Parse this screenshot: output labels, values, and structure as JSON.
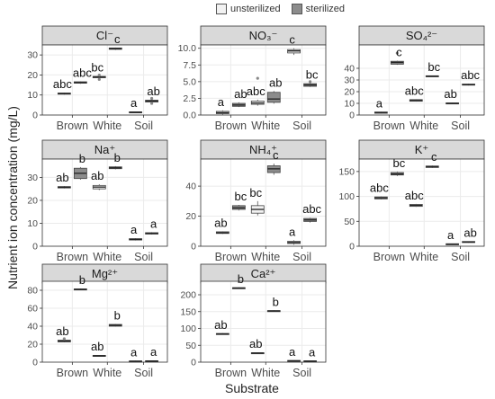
{
  "legend": {
    "entries": [
      {
        "label": "unsterilized",
        "color": "#f2f2f2"
      },
      {
        "label": "sterilized",
        "color": "#8c8c8c"
      }
    ]
  },
  "ylabel": "Nutrient ion concentration (mg/L)",
  "xlabel": "Substrate",
  "chart_data": {
    "type": "box",
    "categories": [
      "Brown",
      "White",
      "Soil"
    ],
    "groups": [
      "unsterilized",
      "sterilized"
    ],
    "panels": [
      {
        "title": "Cl⁻",
        "ylim": [
          0,
          35
        ],
        "yticks": [
          0,
          10,
          20,
          30
        ],
        "boxes": {
          "Brown": [
            {
              "q1": 10.4,
              "med": 10.7,
              "q3": 11.0,
              "lo": 10.2,
              "hi": 11.2,
              "label": "abc"
            },
            {
              "q1": 15.9,
              "med": 16.2,
              "q3": 16.6,
              "lo": 15.6,
              "hi": 16.8,
              "label": "abc"
            }
          ],
          "White": [
            {
              "q1": 18.6,
              "med": 19.0,
              "q3": 19.3,
              "lo": 18.4,
              "hi": 19.5,
              "label": "bc",
              "outliers": [
                17.8,
                19.9
              ]
            },
            {
              "q1": 32.8,
              "med": 33.1,
              "q3": 33.5,
              "lo": 32.5,
              "hi": 33.7,
              "label": "c"
            }
          ],
          "Soil": [
            {
              "q1": 1.2,
              "med": 1.4,
              "q3": 1.6,
              "lo": 1.1,
              "hi": 1.7,
              "label": "a"
            },
            {
              "q1": 6.5,
              "med": 7.0,
              "q3": 7.4,
              "lo": 6.2,
              "hi": 7.6,
              "label": "ab",
              "outliers": [
                8.3,
                5.8
              ]
            }
          ]
        }
      },
      {
        "title": "NO₃⁻",
        "ylim": [
          0,
          10.5
        ],
        "yticks": [
          0.0,
          2.5,
          5.0,
          7.5,
          10.0
        ],
        "boxes": {
          "Brown": [
            {
              "q1": 0.2,
              "med": 0.35,
              "q3": 0.55,
              "lo": 0.05,
              "hi": 0.7,
              "label": "a"
            },
            {
              "q1": 1.3,
              "med": 1.5,
              "q3": 1.75,
              "lo": 1.2,
              "hi": 1.9,
              "label": "ab"
            }
          ],
          "White": [
            {
              "q1": 1.6,
              "med": 1.8,
              "q3": 2.1,
              "lo": 1.4,
              "hi": 2.3,
              "label": "abc",
              "outliers": [
                5.5
              ]
            },
            {
              "q1": 1.9,
              "med": 2.4,
              "q3": 3.4,
              "lo": 1.7,
              "hi": 3.6,
              "label": "ab"
            }
          ],
          "Soil": [
            {
              "q1": 9.3,
              "med": 9.6,
              "q3": 9.8,
              "lo": 9.0,
              "hi": 10.0,
              "label": "c"
            },
            {
              "q1": 4.3,
              "med": 4.5,
              "q3": 4.7,
              "lo": 4.2,
              "hi": 4.8,
              "label": "bc",
              "outliers": [
                5.0
              ]
            }
          ]
        }
      },
      {
        "title": "SO₄²⁻",
        "ylim": [
          0,
          60
        ],
        "yticks": [
          0,
          10,
          20,
          30,
          40
        ],
        "boxes": {
          "Brown": [
            {
              "q1": 1.5,
              "med": 2.0,
              "q3": 2.6,
              "lo": 1.2,
              "hi": 2.8,
              "label": "a"
            },
            {
              "q1": 43.5,
              "med": 45.0,
              "q3": 46.0,
              "lo": 43.0,
              "hi": 46.5,
              "label": "c",
              "outliers": [
                53.0
              ]
            }
          ],
          "White": [
            {
              "q1": 11.8,
              "med": 12.5,
              "q3": 13.2,
              "lo": 11.5,
              "hi": 13.5,
              "label": "abc"
            },
            {
              "q1": 33.0,
              "med": 33.3,
              "q3": 33.6,
              "lo": 32.8,
              "hi": 33.8,
              "label": "bc"
            }
          ],
          "Soil": [
            {
              "q1": 9.5,
              "med": 10.0,
              "q3": 10.4,
              "lo": 9.3,
              "hi": 10.6,
              "label": "ab"
            },
            {
              "q1": 25.6,
              "med": 26.0,
              "q3": 26.5,
              "lo": 25.3,
              "hi": 26.8,
              "label": "abc"
            }
          ]
        }
      },
      {
        "title": "Na⁺",
        "ylim": [
          0,
          38
        ],
        "yticks": [
          0,
          10,
          20,
          30
        ],
        "boxes": {
          "Brown": [
            {
              "q1": 25.4,
              "med": 25.7,
              "q3": 26.0,
              "lo": 25.2,
              "hi": 26.2,
              "label": "ab"
            },
            {
              "q1": 29.5,
              "med": 31.8,
              "q3": 34.0,
              "lo": 29.0,
              "hi": 34.5,
              "label": "b"
            }
          ],
          "White": [
            {
              "q1": 25.0,
              "med": 25.8,
              "q3": 26.5,
              "lo": 24.5,
              "hi": 27.0,
              "label": "ab"
            },
            {
              "q1": 33.8,
              "med": 34.2,
              "q3": 34.6,
              "lo": 33.5,
              "hi": 34.9,
              "label": "b"
            }
          ],
          "Soil": [
            {
              "q1": 2.7,
              "med": 3.0,
              "q3": 3.3,
              "lo": 2.5,
              "hi": 3.5,
              "label": "a"
            },
            {
              "q1": 5.3,
              "med": 5.6,
              "q3": 5.9,
              "lo": 5.1,
              "hi": 6.1,
              "label": "a"
            }
          ]
        }
      },
      {
        "title": "NH₄⁺",
        "ylim": [
          0,
          58
        ],
        "yticks": [
          0,
          20,
          40
        ],
        "boxes": {
          "Brown": [
            {
              "q1": 8.5,
              "med": 9.0,
              "q3": 9.6,
              "lo": 8.2,
              "hi": 9.9,
              "label": "ab"
            },
            {
              "q1": 24.5,
              "med": 25.5,
              "q3": 27.0,
              "lo": 23.8,
              "hi": 27.5,
              "label": "bc"
            }
          ],
          "White": [
            {
              "q1": 22.0,
              "med": 24.5,
              "q3": 27.0,
              "lo": 20.5,
              "hi": 30.0,
              "label": "bc"
            },
            {
              "q1": 49.0,
              "med": 51.5,
              "q3": 53.5,
              "lo": 47.5,
              "hi": 55.0,
              "label": "c"
            }
          ],
          "Soil": [
            {
              "q1": 1.8,
              "med": 2.5,
              "q3": 3.3,
              "lo": 1.0,
              "hi": 4.0,
              "label": "a"
            },
            {
              "q1": 16.5,
              "med": 17.5,
              "q3": 18.5,
              "lo": 15.8,
              "hi": 19.0,
              "label": "abc"
            }
          ]
        }
      },
      {
        "title": "K⁺",
        "ylim": [
          0,
          175
        ],
        "yticks": [
          0,
          50,
          100,
          150
        ],
        "boxes": {
          "Brown": [
            {
              "q1": 95.0,
              "med": 97.0,
              "q3": 99.0,
              "lo": 94.0,
              "hi": 100.0,
              "label": "abc"
            },
            {
              "q1": 143.0,
              "med": 145.0,
              "q3": 148.0,
              "lo": 141.0,
              "hi": 150.0,
              "label": "bc"
            }
          ],
          "White": [
            {
              "q1": 80.0,
              "med": 82.0,
              "q3": 84.0,
              "lo": 79.0,
              "hi": 85.0,
              "label": "abc"
            },
            {
              "q1": 158.0,
              "med": 160.0,
              "q3": 161.0,
              "lo": 157.0,
              "hi": 162.0,
              "label": "c"
            }
          ],
          "Soil": [
            {
              "q1": 3.0,
              "med": 4.0,
              "q3": 5.0,
              "lo": 2.5,
              "hi": 5.5,
              "label": "a"
            },
            {
              "q1": 7.5,
              "med": 8.5,
              "q3": 9.5,
              "lo": 7.0,
              "hi": 10.0,
              "label": "ab"
            }
          ]
        }
      },
      {
        "title": "Mg²⁺",
        "ylim": [
          0,
          90
        ],
        "yticks": [
          0,
          20,
          40,
          60,
          80
        ],
        "boxes": {
          "Brown": [
            {
              "q1": 22.5,
              "med": 23.5,
              "q3": 24.5,
              "lo": 22.0,
              "hi": 25.0,
              "label": "ab",
              "outliers": [
                26.0
              ]
            },
            {
              "q1": 80.5,
              "med": 81.0,
              "q3": 81.5,
              "lo": 80.0,
              "hi": 82.0,
              "label": "b"
            }
          ],
          "White": [
            {
              "q1": 6.5,
              "med": 7.0,
              "q3": 7.6,
              "lo": 6.0,
              "hi": 8.0,
              "label": "ab"
            },
            {
              "q1": 40.0,
              "med": 41.0,
              "q3": 42.0,
              "lo": 39.5,
              "hi": 42.5,
              "label": "b"
            }
          ],
          "Soil": [
            {
              "q1": 0.6,
              "med": 1.0,
              "q3": 1.4,
              "lo": 0.4,
              "hi": 1.6,
              "label": "a"
            },
            {
              "q1": 0.8,
              "med": 1.2,
              "q3": 1.6,
              "lo": 0.6,
              "hi": 1.8,
              "label": "a"
            }
          ]
        }
      },
      {
        "title": "Ca²⁺",
        "ylim": [
          0,
          240
        ],
        "yticks": [
          0,
          50,
          100,
          150,
          200
        ],
        "boxes": {
          "Brown": [
            {
              "q1": 83.0,
              "med": 84.0,
              "q3": 85.0,
              "lo": 82.0,
              "hi": 86.0,
              "label": "ab"
            },
            {
              "q1": 219.0,
              "med": 220.0,
              "q3": 221.0,
              "lo": 218.0,
              "hi": 222.0,
              "label": "b"
            }
          ],
          "White": [
            {
              "q1": 26.0,
              "med": 27.0,
              "q3": 28.0,
              "lo": 25.0,
              "hi": 29.0,
              "label": "ab"
            },
            {
              "q1": 151.0,
              "med": 152.0,
              "q3": 153.0,
              "lo": 150.0,
              "hi": 154.0,
              "label": "b"
            }
          ],
          "Soil": [
            {
              "q1": 3.0,
              "med": 4.0,
              "q3": 5.0,
              "lo": 2.5,
              "hi": 5.5,
              "label": "a"
            },
            {
              "q1": 2.0,
              "med": 3.0,
              "q3": 4.0,
              "lo": 1.5,
              "hi": 4.5,
              "label": "a"
            }
          ]
        }
      }
    ]
  }
}
